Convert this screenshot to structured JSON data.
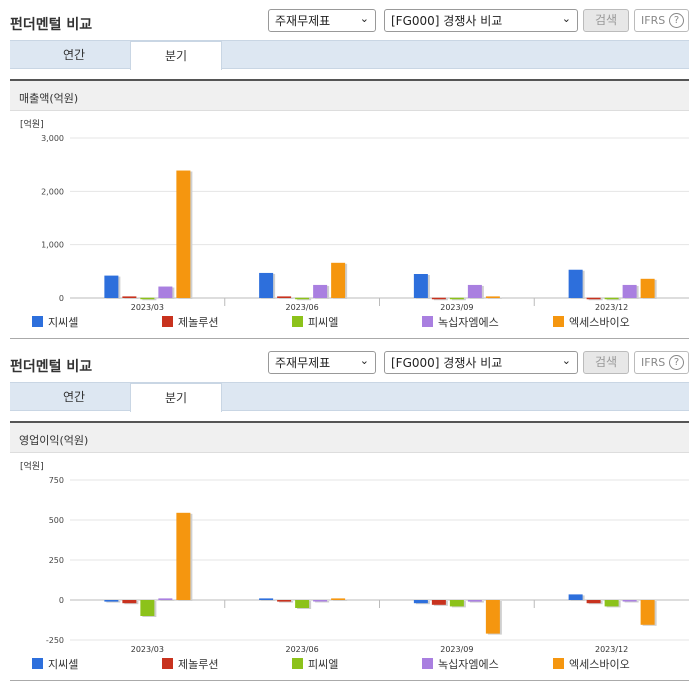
{
  "panels": [
    {
      "title": "펀더멘털 비교",
      "select1": "주재무제표",
      "select2": "[FG000] 경쟁사 비교",
      "search_label": "검색",
      "ifrs_label": "IFRS",
      "help_label": "?",
      "tabs": [
        {
          "label": "연간",
          "active": false
        },
        {
          "label": "분기",
          "active": true
        }
      ],
      "chart_title": "매출액(억원)"
    },
    {
      "title": "펀더멘털 비교",
      "select1": "주재무제표",
      "select2": "[FG000] 경쟁사 비교",
      "search_label": "검색",
      "ifrs_label": "IFRS",
      "help_label": "?",
      "tabs": [
        {
          "label": "연간",
          "active": false
        },
        {
          "label": "분기",
          "active": true
        }
      ],
      "chart_title": "영업이익(억원)"
    }
  ],
  "chart_data": [
    {
      "type": "bar",
      "unit_label": "[억원]",
      "categories": [
        "2023/03",
        "2023/06",
        "2023/09",
        "2023/12"
      ],
      "ylim": [
        0,
        3000
      ],
      "yticks": [
        0,
        1000,
        2000,
        3000
      ],
      "ytick_labels": [
        "0",
        "1,000",
        "2,000",
        "3,000"
      ],
      "series": [
        {
          "name": "지씨셀",
          "color": "#2d6fdc",
          "values": [
            420,
            470,
            450,
            530
          ]
        },
        {
          "name": "제놀루션",
          "color": "#c8321e",
          "values": [
            30,
            30,
            5,
            5
          ]
        },
        {
          "name": "피씨엘",
          "color": "#8cc21a",
          "values": [
            5,
            5,
            5,
            5
          ]
        },
        {
          "name": "녹십자엠에스",
          "color": "#a97fe0",
          "values": [
            215,
            245,
            245,
            245
          ]
        },
        {
          "name": "엑세스바이오",
          "color": "#f5960f",
          "values": [
            2390,
            660,
            30,
            360
          ]
        }
      ]
    },
    {
      "type": "bar",
      "unit_label": "[억원]",
      "categories": [
        "2023/03",
        "2023/06",
        "2023/09",
        "2023/12"
      ],
      "ylim": [
        -250,
        750
      ],
      "yticks": [
        -250,
        0,
        250,
        500,
        750
      ],
      "ytick_labels": [
        "-250",
        "0",
        "250",
        "500",
        "750"
      ],
      "series": [
        {
          "name": "지씨셀",
          "color": "#2d6fdc",
          "values": [
            -10,
            10,
            -20,
            35
          ]
        },
        {
          "name": "제놀루션",
          "color": "#c8321e",
          "values": [
            -20,
            -10,
            -30,
            -20
          ]
        },
        {
          "name": "피씨엘",
          "color": "#8cc21a",
          "values": [
            -100,
            -50,
            -40,
            -40
          ]
        },
        {
          "name": "녹십자엠에스",
          "color": "#a97fe0",
          "values": [
            10,
            0,
            -10,
            0
          ]
        },
        {
          "name": "엑세스바이오",
          "color": "#f5960f",
          "values": [
            545,
            10,
            -210,
            -155
          ]
        }
      ]
    }
  ]
}
